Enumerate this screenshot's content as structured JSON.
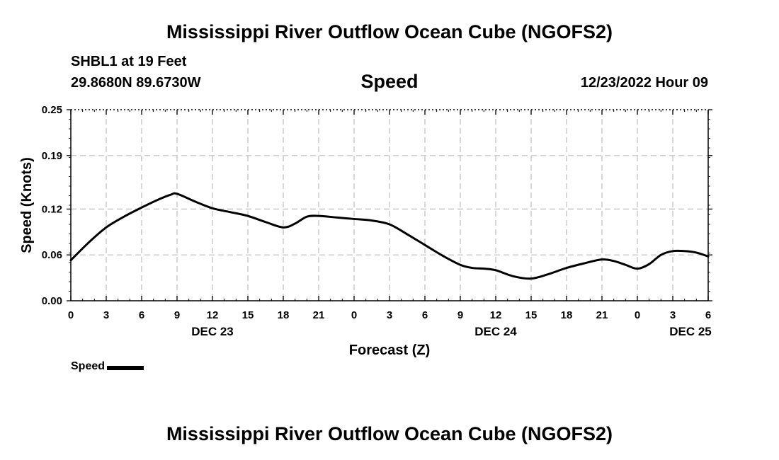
{
  "header": {
    "title": "Mississippi River Outflow Ocean Cube (NGOFS2)",
    "station": "SHBL1 at 19 Feet",
    "coords": "29.8680N  89.6730W",
    "chart_title": "Speed",
    "datetime": "12/23/2022 Hour 09"
  },
  "footer": {
    "title": "Mississippi River Outflow Ocean Cube (NGOFS2)"
  },
  "legend": {
    "label": "Speed",
    "color": "#000000"
  },
  "chart_data": {
    "type": "line",
    "title": "Speed",
    "xlabel": "Forecast (Z)",
    "ylabel": "Speed (Knots)",
    "xlim": [
      0,
      54
    ],
    "ylim": [
      0,
      0.25
    ],
    "yticks": [
      0.0,
      0.06,
      0.12,
      0.19,
      0.25
    ],
    "ytick_labels": [
      "0.00",
      "0.06",
      "0.12",
      "0.19",
      "0.25"
    ],
    "xticks": [
      0,
      3,
      6,
      9,
      12,
      15,
      18,
      21,
      24,
      27,
      30,
      33,
      36,
      39,
      42,
      45,
      48,
      51,
      54
    ],
    "xtick_labels": [
      "0",
      "3",
      "6",
      "9",
      "12",
      "15",
      "18",
      "21",
      "0",
      "3",
      "6",
      "9",
      "12",
      "15",
      "18",
      "21",
      "0",
      "3",
      "6"
    ],
    "day_labels": [
      {
        "x": 12,
        "label": "DEC 23"
      },
      {
        "x": 36,
        "label": "DEC 24"
      },
      {
        "x": 52.5,
        "label": "DEC 25"
      }
    ],
    "grid": true,
    "series": [
      {
        "name": "Speed",
        "x": [
          0,
          1.5,
          3,
          4.5,
          6,
          7.5,
          8.5,
          9,
          10.5,
          12,
          13.5,
          15,
          16.5,
          18,
          19,
          20,
          21,
          22.5,
          24,
          25.5,
          27,
          28.5,
          30,
          31.5,
          33,
          34,
          35,
          36,
          37.5,
          39,
          40.5,
          42,
          43.5,
          45,
          46,
          47,
          48,
          49,
          50,
          51,
          52,
          53,
          54
        ],
        "values": [
          0.053,
          0.076,
          0.096,
          0.11,
          0.122,
          0.133,
          0.139,
          0.14,
          0.13,
          0.121,
          0.116,
          0.111,
          0.103,
          0.096,
          0.101,
          0.11,
          0.111,
          0.109,
          0.107,
          0.105,
          0.1,
          0.087,
          0.073,
          0.059,
          0.047,
          0.043,
          0.042,
          0.04,
          0.032,
          0.029,
          0.035,
          0.043,
          0.049,
          0.054,
          0.052,
          0.047,
          0.042,
          0.048,
          0.06,
          0.065,
          0.065,
          0.063,
          0.058
        ],
        "color": "#000000"
      }
    ]
  }
}
